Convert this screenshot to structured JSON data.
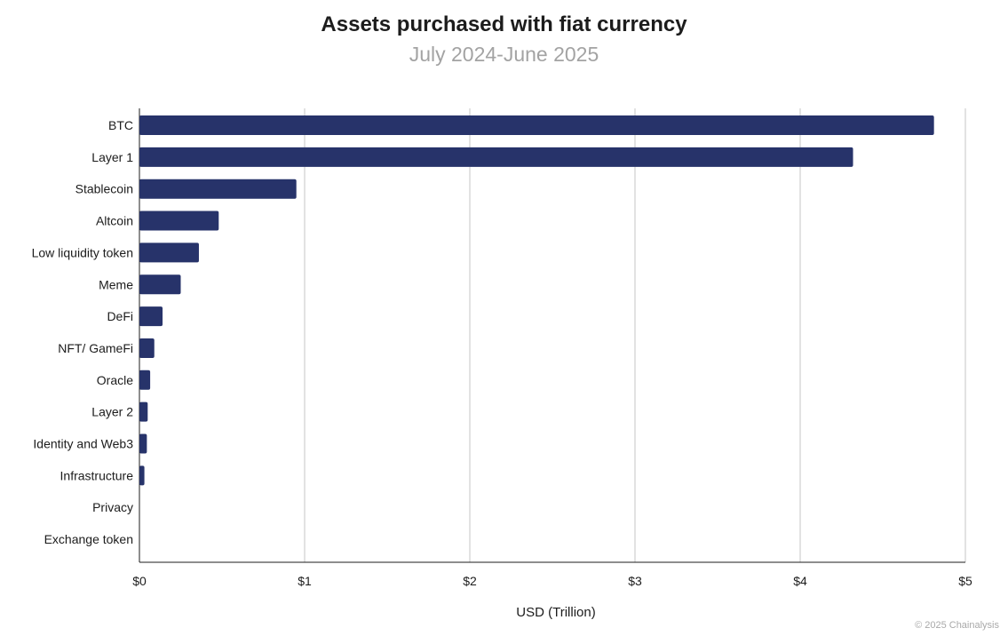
{
  "chart_data": {
    "type": "bar",
    "orientation": "horizontal",
    "title": "Assets purchased with fiat currency",
    "subtitle": "July 2024-June 2025",
    "xlabel": "USD (Trillion)",
    "ylabel": "",
    "xlim": [
      0,
      5
    ],
    "x_ticks": [
      "$0",
      "$1",
      "$2",
      "$3",
      "$4",
      "$5"
    ],
    "grid": true,
    "bar_color": "#27336a",
    "categories": [
      "BTC",
      "Layer 1",
      "Stablecoin",
      "Altcoin",
      "Low liquidity token",
      "Meme",
      "DeFi",
      "NFT/ GameFi",
      "Oracle",
      "Layer 2",
      "Identity and Web3",
      "Infrastructure",
      "Privacy",
      "Exchange token"
    ],
    "values": [
      4.81,
      4.32,
      0.95,
      0.48,
      0.36,
      0.25,
      0.14,
      0.09,
      0.065,
      0.05,
      0.045,
      0.03,
      0.0,
      0.0
    ]
  },
  "credit": "© 2025 Chainalysis"
}
